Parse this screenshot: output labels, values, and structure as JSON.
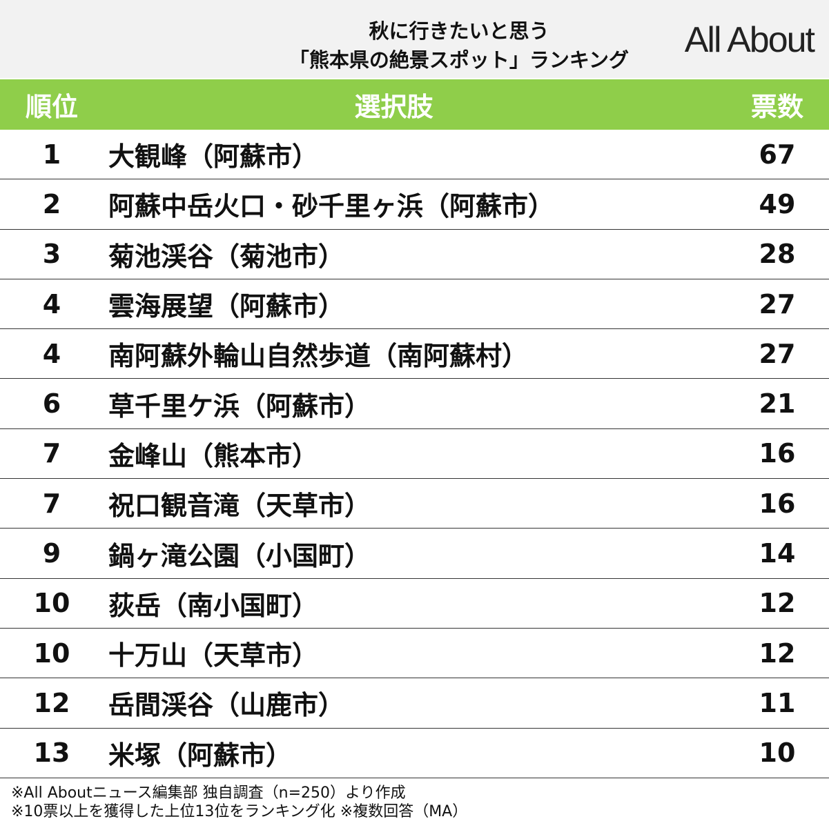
{
  "header": {
    "title_lines": [
      "秋に行きたいと思う",
      "「熊本県の絶景スポット」ランキング"
    ],
    "logo": "All About"
  },
  "table": {
    "columns": [
      "順位",
      "選択肢",
      "票数"
    ],
    "rows": [
      [
        1,
        "大観峰（阿蘇市）",
        67
      ],
      [
        2,
        "阿蘇中岳火口・砂千里ヶ浜（阿蘇市）",
        49
      ],
      [
        3,
        "菊池渓谷（菊池市）",
        28
      ],
      [
        4,
        "雲海展望（阿蘇市）",
        27
      ],
      [
        4,
        "南阿蘇外輪山自然歩道（南阿蘇村）",
        27
      ],
      [
        6,
        "草千里ケ浜（阿蘇市）",
        21
      ],
      [
        7,
        "金峰山（熊本市）",
        16
      ],
      [
        7,
        "祝口観音滝（天草市）",
        16
      ],
      [
        9,
        "鍋ヶ滝公園（小国町）",
        14
      ],
      [
        10,
        "荻岳（南小国町）",
        12
      ],
      [
        10,
        "十万山（天草市）",
        12
      ],
      [
        12,
        "岳間渓谷（山鹿市）",
        11
      ],
      [
        13,
        "米塚（阿蘇市）",
        10
      ]
    ]
  },
  "footer": {
    "notes": [
      "※All Aboutニュース編集部 独自調査（n=250）より作成",
      "※10票以上を獲得した上位13位をランキング化 ※複数回答（MA）"
    ]
  }
}
